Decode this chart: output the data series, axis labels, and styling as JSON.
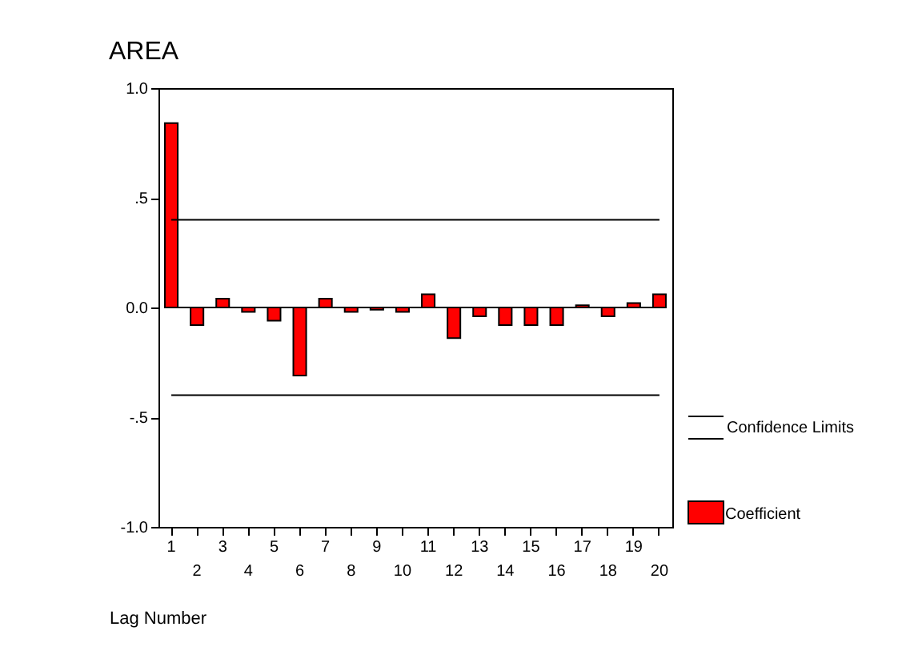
{
  "chart_data": {
    "type": "bar",
    "title": "AREA",
    "xlabel": "Lag Number",
    "categories": [
      "1",
      "2",
      "3",
      "4",
      "5",
      "6",
      "7",
      "8",
      "9",
      "10",
      "11",
      "12",
      "13",
      "14",
      "15",
      "16",
      "17",
      "18",
      "19",
      "20"
    ],
    "series": [
      {
        "name": "Coefficient",
        "color": "#ff0000",
        "values": [
          0.84,
          -0.08,
          0.04,
          -0.02,
          -0.06,
          -0.31,
          0.04,
          -0.02,
          -0.01,
          -0.02,
          0.06,
          -0.14,
          -0.04,
          -0.08,
          -0.08,
          -0.08,
          0.01,
          -0.04,
          0.02,
          0.06
        ]
      }
    ],
    "ref_lines": [
      {
        "axis": "y",
        "value": 0.4,
        "label": "Confidence Limits",
        "color": "#000000"
      },
      {
        "axis": "y",
        "value": -0.4,
        "label": null,
        "color": "#000000"
      },
      {
        "axis": "y",
        "value": 0.0,
        "label": null,
        "color": "#000000"
      }
    ],
    "ylim": [
      -1.0,
      1.0
    ],
    "yticks": [
      {
        "value": -1.0,
        "label": "-1.0"
      },
      {
        "value": -0.5,
        "label": "-.5"
      },
      {
        "value": 0.0,
        "label": "0.0"
      },
      {
        "value": 0.5,
        "label": ".5"
      },
      {
        "value": 1.0,
        "label": "1.0"
      }
    ],
    "grid": false,
    "legend": "right"
  }
}
